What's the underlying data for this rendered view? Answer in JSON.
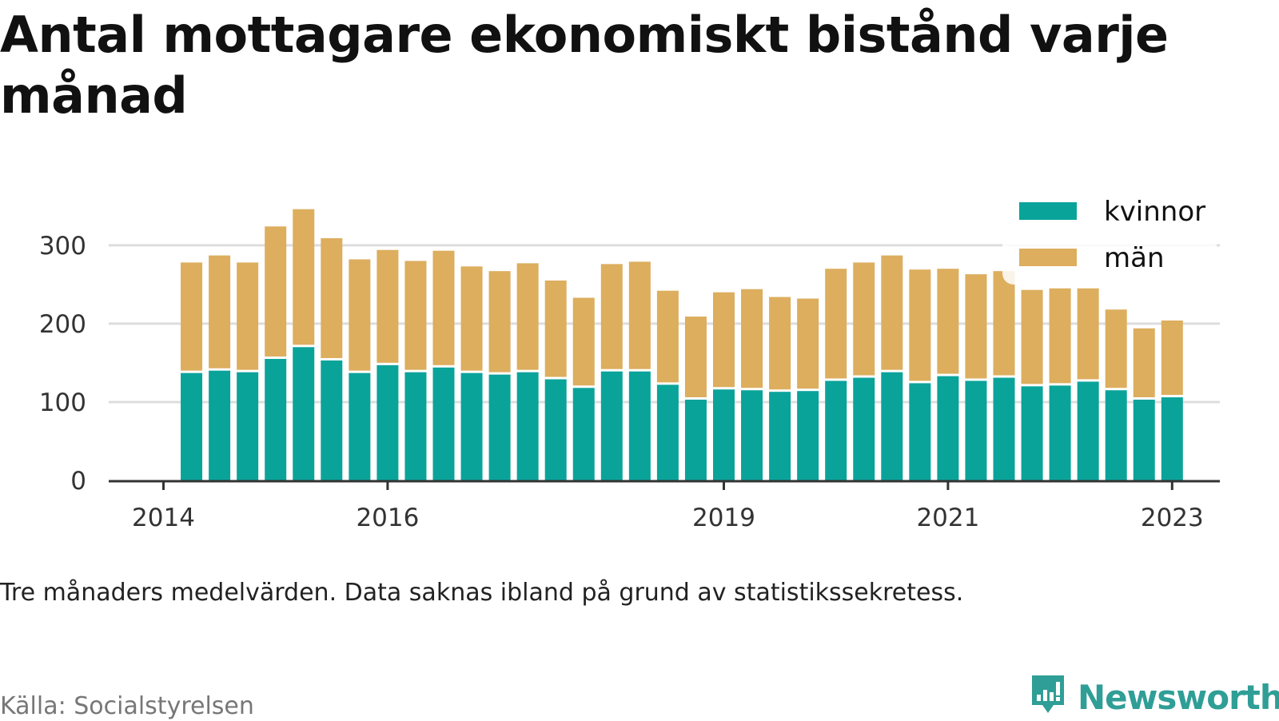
{
  "header": {
    "title": "Antal mottagare ekonomiskt bistånd varje månad"
  },
  "footer": {
    "note": "Tre månaders medelvärden. Data saknas ibland på grund av statistikssekretess.",
    "source": "Källa: Socialstyrelsen",
    "brand": "Newsworthy",
    "brand_icon": "newsworthy-chart-bubble-icon"
  },
  "colors": {
    "kvinnor": "#0aa39a",
    "man": "#dcae5e",
    "grid": "#dddddd",
    "axis": "#333333",
    "brand": "#2f9e96"
  },
  "chart_data": {
    "type": "bar",
    "stacked": true,
    "x_ticks": [
      "2014",
      "2016",
      "2019",
      "2021",
      "2023"
    ],
    "x_tick_positions": [
      0,
      8,
      20,
      28,
      36
    ],
    "bar_start_index": 1,
    "ylim": [
      0,
      360
    ],
    "y_ticks": [
      0,
      100,
      200,
      300
    ],
    "grid": true,
    "legend_position": "top-right",
    "series": [
      {
        "name": "kvinnor",
        "values": [
          137,
          140,
          138,
          155,
          170,
          153,
          137,
          147,
          138,
          144,
          137,
          135,
          138,
          129,
          118,
          139,
          139,
          122,
          103,
          116,
          115,
          113,
          114,
          127,
          131,
          138,
          124,
          133,
          127,
          131,
          120,
          121,
          126,
          115,
          103,
          106
        ]
      },
      {
        "name": "män",
        "values": [
          141,
          147,
          140,
          169,
          176,
          156,
          145,
          147,
          142,
          149,
          136,
          132,
          139,
          126,
          115,
          137,
          140,
          120,
          106,
          124,
          129,
          121,
          118,
          143,
          147,
          149,
          145,
          137,
          136,
          136,
          123,
          124,
          119,
          103,
          91,
          98
        ]
      }
    ]
  }
}
